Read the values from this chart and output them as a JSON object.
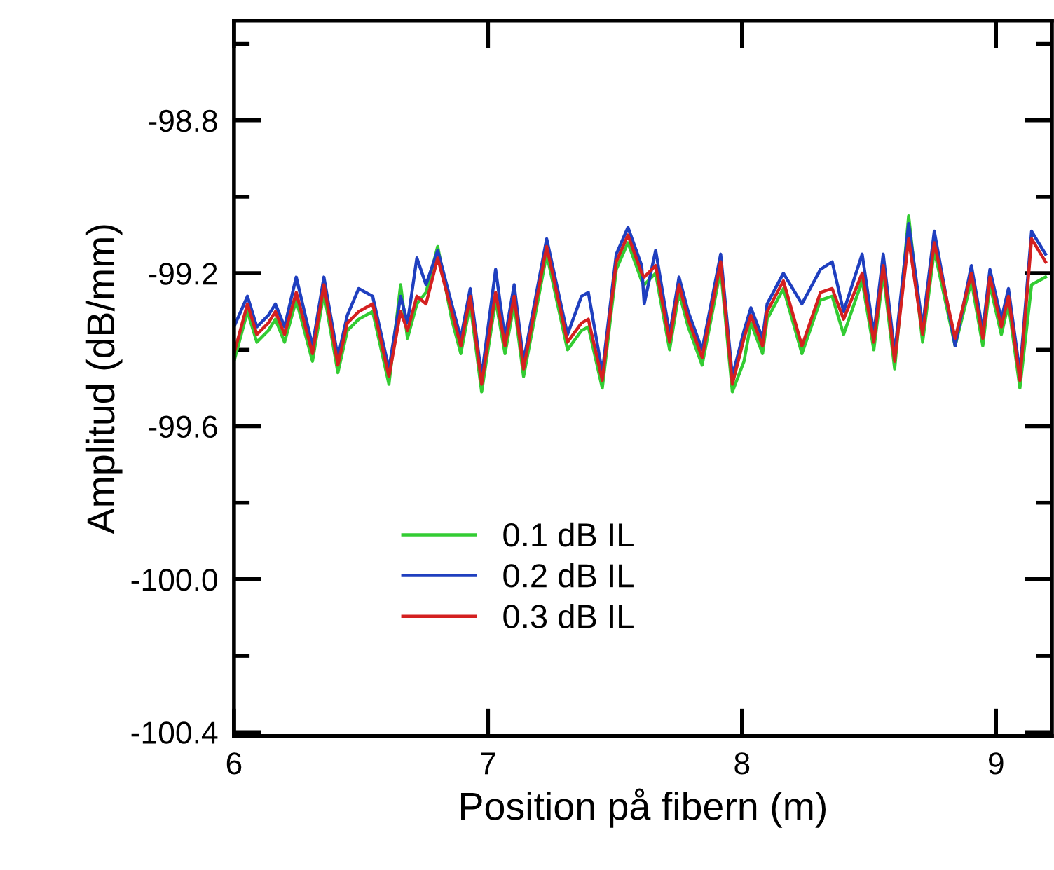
{
  "chart_data": {
    "type": "line",
    "xlabel": "Position på fibern (m)",
    "ylabel": "Amplitud (dB/mm)",
    "x": [
      6.0,
      6.053,
      6.09,
      6.135,
      6.163,
      6.199,
      6.245,
      6.309,
      6.354,
      6.409,
      6.446,
      6.491,
      6.546,
      6.61,
      6.656,
      6.683,
      6.72,
      6.756,
      6.802,
      6.857,
      6.893,
      6.93,
      6.975,
      7.03,
      7.067,
      7.103,
      7.14,
      7.231,
      7.313,
      7.368,
      7.395,
      7.45,
      7.505,
      7.551,
      7.605,
      7.615,
      7.66,
      7.715,
      7.752,
      7.788,
      7.843,
      7.916,
      7.962,
      8.008,
      8.035,
      8.081,
      8.099,
      8.163,
      8.236,
      8.309,
      8.355,
      8.4,
      8.473,
      8.519,
      8.556,
      8.601,
      8.656,
      8.711,
      8.757,
      8.839,
      8.903,
      8.948,
      8.976,
      9.021,
      9.049,
      9.094,
      9.14,
      9.195
    ],
    "series": [
      {
        "name": "0.1 dB IL",
        "color": "#33cc33",
        "values": [
          -99.43,
          -99.3,
          -99.38,
          -99.35,
          -99.32,
          -99.38,
          -99.27,
          -99.43,
          -99.25,
          -99.46,
          -99.35,
          -99.32,
          -99.3,
          -99.49,
          -99.23,
          -99.37,
          -99.28,
          -99.25,
          -99.13,
          -99.32,
          -99.41,
          -99.28,
          -99.51,
          -99.27,
          -99.41,
          -99.28,
          -99.47,
          -99.15,
          -99.4,
          -99.35,
          -99.34,
          -99.5,
          -99.19,
          -99.12,
          -99.22,
          -99.23,
          -99.2,
          -99.4,
          -99.25,
          -99.34,
          -99.44,
          -99.19,
          -99.51,
          -99.43,
          -99.33,
          -99.41,
          -99.32,
          -99.24,
          -99.41,
          -99.27,
          -99.26,
          -99.36,
          -99.22,
          -99.4,
          -99.2,
          -99.45,
          -99.05,
          -99.38,
          -99.14,
          -99.39,
          -99.22,
          -99.39,
          -99.23,
          -99.36,
          -99.28,
          -99.5,
          -99.23,
          -99.21
        ]
      },
      {
        "name": "0.2 dB IL",
        "color": "#1f3fbf",
        "values": [
          -99.34,
          -99.26,
          -99.34,
          -99.31,
          -99.28,
          -99.34,
          -99.21,
          -99.39,
          -99.21,
          -99.42,
          -99.31,
          -99.24,
          -99.26,
          -99.45,
          -99.26,
          -99.33,
          -99.16,
          -99.23,
          -99.14,
          -99.28,
          -99.37,
          -99.24,
          -99.47,
          -99.19,
          -99.37,
          -99.23,
          -99.43,
          -99.11,
          -99.36,
          -99.26,
          -99.25,
          -99.46,
          -99.15,
          -99.08,
          -99.18,
          -99.28,
          -99.14,
          -99.36,
          -99.21,
          -99.3,
          -99.4,
          -99.15,
          -99.47,
          -99.35,
          -99.29,
          -99.37,
          -99.28,
          -99.2,
          -99.28,
          -99.19,
          -99.17,
          -99.3,
          -99.15,
          -99.36,
          -99.15,
          -99.41,
          -99.07,
          -99.34,
          -99.09,
          -99.39,
          -99.18,
          -99.35,
          -99.19,
          -99.32,
          -99.24,
          -99.46,
          -99.09,
          -99.15
        ]
      },
      {
        "name": "0.3 dB IL",
        "color": "#d42020",
        "values": [
          -99.41,
          -99.28,
          -99.36,
          -99.33,
          -99.3,
          -99.36,
          -99.25,
          -99.41,
          -99.23,
          -99.44,
          -99.33,
          -99.3,
          -99.28,
          -99.47,
          -99.3,
          -99.35,
          -99.26,
          -99.28,
          -99.16,
          -99.3,
          -99.39,
          -99.26,
          -99.49,
          -99.25,
          -99.39,
          -99.26,
          -99.45,
          -99.13,
          -99.38,
          -99.33,
          -99.32,
          -99.48,
          -99.17,
          -99.1,
          -99.2,
          -99.21,
          -99.18,
          -99.38,
          -99.23,
          -99.32,
          -99.42,
          -99.17,
          -99.49,
          -99.37,
          -99.31,
          -99.39,
          -99.3,
          -99.22,
          -99.39,
          -99.25,
          -99.24,
          -99.32,
          -99.2,
          -99.38,
          -99.18,
          -99.43,
          -99.11,
          -99.36,
          -99.12,
          -99.37,
          -99.2,
          -99.37,
          -99.21,
          -99.34,
          -99.26,
          -99.48,
          -99.11,
          -99.17
        ]
      }
    ],
    "xlim": [
      6,
      9.22
    ],
    "xticks": [
      6,
      7,
      8,
      9
    ],
    "ylim": [
      -100.41,
      -98.54
    ],
    "yticks": [
      -98.8,
      -99.2,
      -99.6,
      {
        "value": -100.0,
        "label": "-100.0"
      },
      -100.4,
      {
        "value": -98.6,
        "label": null
      },
      {
        "value": -99.0,
        "label": null
      },
      {
        "value": -99.4,
        "label": null
      },
      {
        "value": -99.8,
        "label": null
      },
      {
        "value": -100.2,
        "label": null
      }
    ],
    "legend": "bottom left",
    "grid": false,
    "marker": "none",
    "line_style": "solid"
  }
}
